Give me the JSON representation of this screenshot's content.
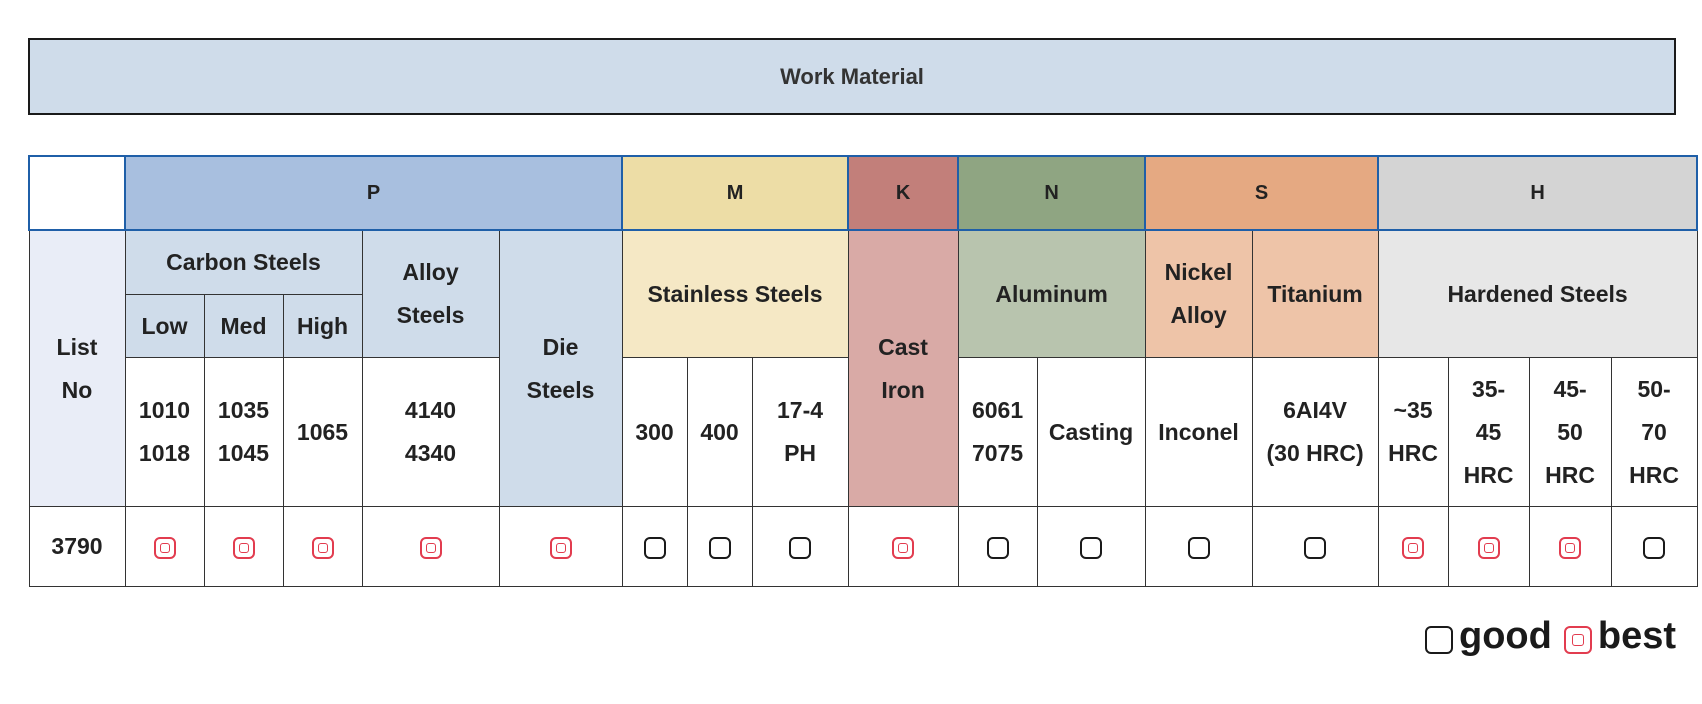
{
  "title": "Work Material",
  "groups": {
    "P": "P",
    "M": "M",
    "K": "K",
    "N": "N",
    "S": "S",
    "H": "H"
  },
  "headers": {
    "list_no": [
      "List",
      "No"
    ],
    "carbon_steels": "Carbon Steels",
    "low": "Low",
    "med": "Med",
    "high": "High",
    "alloy_steels": [
      "Alloy",
      "Steels"
    ],
    "die_steels": [
      "Die",
      "Steels"
    ],
    "stainless_steels": "Stainless Steels",
    "cast_iron": [
      "Cast",
      "Iron"
    ],
    "aluminum": "Aluminum",
    "nickel_alloy": [
      "Nickel",
      "Alloy"
    ],
    "titanium": "Titanium",
    "hardened_steels": "Hardened Steels"
  },
  "specs": {
    "low": [
      "1010",
      "1018"
    ],
    "med": [
      "1035",
      "1045"
    ],
    "high": "1065",
    "alloy": [
      "4140",
      "4340"
    ],
    "ss300": "300",
    "ss400": "400",
    "ss174": [
      "17-4",
      "PH"
    ],
    "al_grades": [
      "6061",
      "7075"
    ],
    "al_casting": "Casting",
    "nickel": "Inconel",
    "titanium": [
      "6AI4V",
      "(30 HRC)"
    ],
    "h35": [
      "~35",
      "HRC"
    ],
    "h3545": [
      "35-",
      "45",
      "HRC"
    ],
    "h4550": [
      "45-",
      "50",
      "HRC"
    ],
    "h5070": [
      "50-",
      "70",
      "HRC"
    ]
  },
  "rows": [
    {
      "list_no": "3790",
      "ratings": [
        "best",
        "best",
        "best",
        "best",
        "best",
        "good",
        "good",
        "good",
        "best",
        "good",
        "good",
        "good",
        "good",
        "best",
        "best",
        "best",
        "good"
      ]
    }
  ],
  "legend": {
    "good": "good",
    "best": "best"
  },
  "colors": {
    "best": "#e23c4f",
    "good": "#1a1a1a",
    "group_border": "#1f5fa8"
  }
}
